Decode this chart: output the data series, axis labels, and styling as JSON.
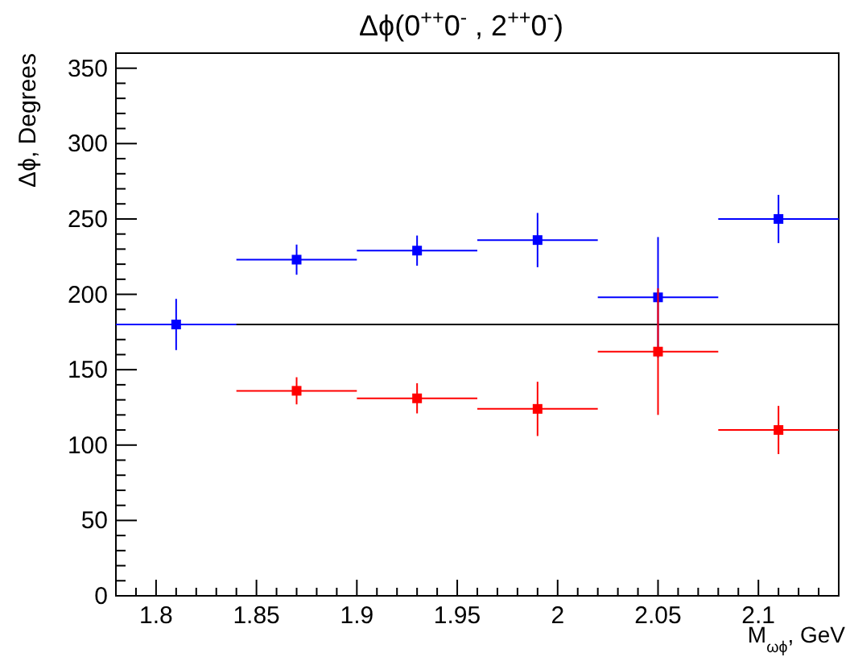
{
  "chart_data": {
    "type": "scatter",
    "title": "Δϕ(0$^{++}$0$^{-}$ , 2$^{++}$0$^{-}$)",
    "xlabel": "M$_{ωϕ}$, GeV",
    "ylabel": "Δϕ, Degrees",
    "x": [
      1.81,
      1.87,
      1.93,
      1.99,
      2.05,
      2.11
    ],
    "series": [
      {
        "color": "#0000ff",
        "values": [
          180,
          223,
          229,
          236,
          198,
          250
        ],
        "errors": [
          17,
          10,
          10,
          18,
          40,
          16
        ],
        "xerrors": [
          0.03,
          0.03,
          0.03,
          0.03,
          0.03,
          0.03
        ]
      },
      {
        "color": "#ff0000",
        "values": [
          null,
          136,
          131,
          124,
          162,
          110
        ],
        "errors": [
          null,
          9,
          10,
          18,
          42,
          16
        ],
        "xerrors": [
          null,
          0.03,
          0.03,
          0.03,
          0.03,
          0.03
        ]
      }
    ],
    "marker": "square",
    "xlim": [
      1.78,
      2.14
    ],
    "xticks": [
      {
        "value": 1.79,
        "label": null
      },
      1.8,
      {
        "value": 1.81,
        "label": null
      },
      {
        "value": 1.82,
        "label": null
      },
      {
        "value": 1.83,
        "label": null
      },
      {
        "value": 1.84,
        "label": null
      },
      1.85,
      {
        "value": 1.86,
        "label": null
      },
      {
        "value": 1.87,
        "label": null
      },
      {
        "value": 1.88,
        "label": null
      },
      {
        "value": 1.89,
        "label": null
      },
      1.9,
      {
        "value": 1.91,
        "label": null
      },
      {
        "value": 1.92,
        "label": null
      },
      {
        "value": 1.93,
        "label": null
      },
      {
        "value": 1.94,
        "label": null
      },
      1.95,
      {
        "value": 1.96,
        "label": null
      },
      {
        "value": 1.97,
        "label": null
      },
      {
        "value": 1.98,
        "label": null
      },
      {
        "value": 1.99,
        "label": null
      },
      2,
      {
        "value": 2.01,
        "label": null
      },
      {
        "value": 2.02,
        "label": null
      },
      {
        "value": 2.03,
        "label": null
      },
      {
        "value": 2.04,
        "label": null
      },
      2.05,
      {
        "value": 2.06,
        "label": null
      },
      {
        "value": 2.07,
        "label": null
      },
      {
        "value": 2.08,
        "label": null
      },
      {
        "value": 2.09,
        "label": null
      },
      2.1,
      {
        "value": 2.11,
        "label": null
      },
      {
        "value": 2.12,
        "label": null
      },
      {
        "value": 2.13,
        "label": null
      }
    ],
    "ylim": [
      0,
      360
    ],
    "yticks": [
      0,
      {
        "value": 10,
        "label": null
      },
      {
        "value": 20,
        "label": null
      },
      {
        "value": 30,
        "label": null
      },
      {
        "value": 40,
        "label": null
      },
      50,
      {
        "value": 60,
        "label": null
      },
      {
        "value": 70,
        "label": null
      },
      {
        "value": 80,
        "label": null
      },
      {
        "value": 90,
        "label": null
      },
      100,
      {
        "value": 110,
        "label": null
      },
      {
        "value": 120,
        "label": null
      },
      {
        "value": 130,
        "label": null
      },
      {
        "value": 140,
        "label": null
      },
      150,
      {
        "value": 160,
        "label": null
      },
      {
        "value": 170,
        "label": null
      },
      {
        "value": 180,
        "label": null
      },
      {
        "value": 190,
        "label": null
      },
      200,
      {
        "value": 210,
        "label": null
      },
      {
        "value": 220,
        "label": null
      },
      {
        "value": 230,
        "label": null
      },
      {
        "value": 240,
        "label": null
      },
      250,
      {
        "value": 260,
        "label": null
      },
      {
        "value": 270,
        "label": null
      },
      {
        "value": 280,
        "label": null
      },
      {
        "value": 290,
        "label": null
      },
      300,
      {
        "value": 310,
        "label": null
      },
      {
        "value": 320,
        "label": null
      },
      {
        "value": 330,
        "label": null
      },
      {
        "value": 340,
        "label": null
      },
      350,
      {
        "value": 360,
        "label": null
      }
    ],
    "ref_lines": [
      {
        "axis": "y",
        "value": 180,
        "color": "#000000"
      }
    ]
  }
}
